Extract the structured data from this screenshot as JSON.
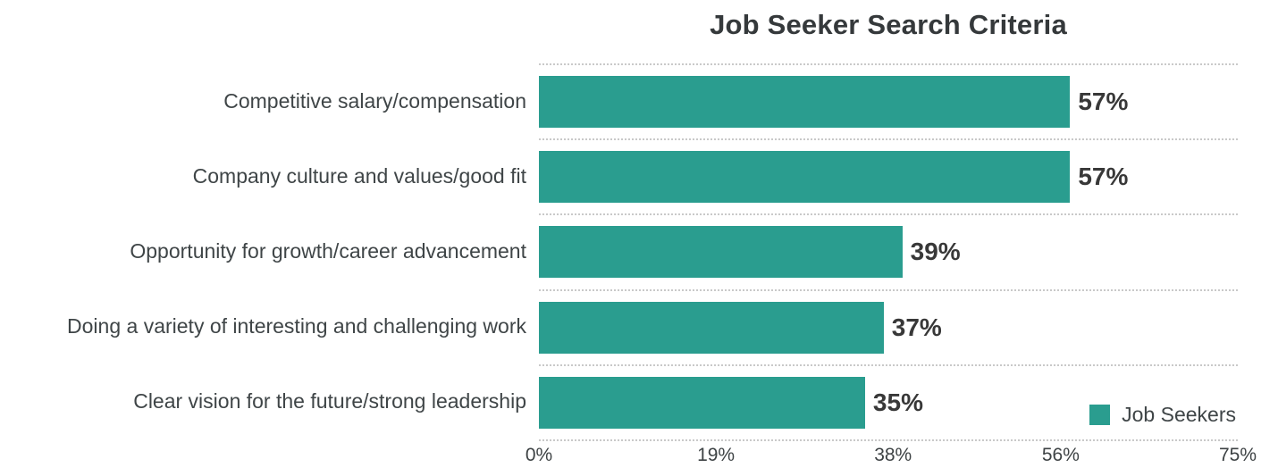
{
  "title": "Job Seeker Search Criteria",
  "colors": {
    "bar": "#2a9d8f",
    "title_text": "#35393b",
    "category_text": "#3f4547",
    "value_text": "#383838",
    "grid": "#c9c9c9",
    "background": "#ffffff"
  },
  "legend": {
    "label": "Job Seekers",
    "swatch_color": "#2a9d8f",
    "position": "bottom-right"
  },
  "chart_data": {
    "type": "bar",
    "orientation": "horizontal",
    "title": "Job Seeker Search Criteria",
    "categories": [
      "Competitive salary/compensation",
      "Company culture and values/good fit",
      "Opportunity for growth/career advancement",
      "Doing a variety of interesting and challenging work",
      "Clear vision for the future/strong leadership"
    ],
    "series": [
      {
        "name": "Job Seekers",
        "values": [
          57,
          57,
          39,
          37,
          35
        ]
      }
    ],
    "value_labels": [
      "57%",
      "57%",
      "39%",
      "37%",
      "35%"
    ],
    "xlabel": "",
    "ylabel": "",
    "xlim": [
      0,
      75
    ],
    "x_ticks": [
      {
        "value": 0,
        "label": "0%"
      },
      {
        "value": 19,
        "label": "19%"
      },
      {
        "value": 38,
        "label": "38%"
      },
      {
        "value": 56,
        "label": "56%"
      },
      {
        "value": 75,
        "label": "75%"
      }
    ],
    "grid": "dotted-horizontal-row-separators",
    "legend_position": "bottom-right"
  }
}
